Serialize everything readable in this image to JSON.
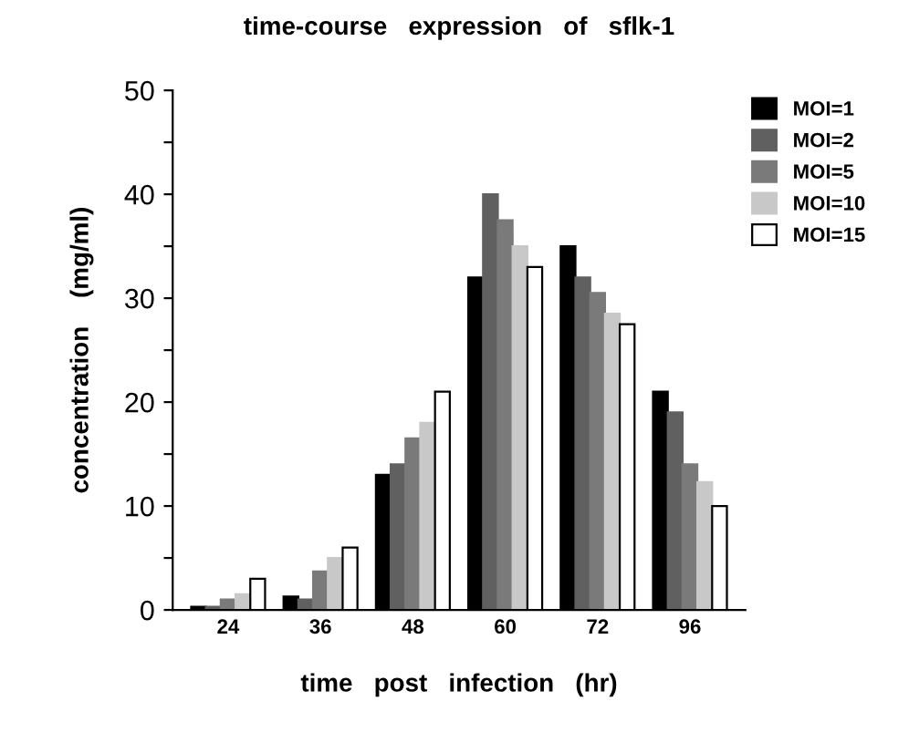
{
  "chart_data": {
    "type": "bar",
    "title": "time-course   expression   of   sflk-1",
    "xlabel": "time   post   infection   (hr)",
    "ylabel": "concentration    (mg/ml)",
    "categories": [
      "24",
      "36",
      "48",
      "60",
      "72",
      "96"
    ],
    "series": [
      {
        "name": "MOI=1",
        "color": "#000000",
        "values": [
          0.3,
          1.3,
          13,
          32,
          35,
          21
        ]
      },
      {
        "name": "MOI=2",
        "color": "#606060",
        "values": [
          0.3,
          1,
          14,
          40,
          32,
          19
        ]
      },
      {
        "name": "MOI=5",
        "color": "#7a7a7a",
        "values": [
          1,
          3.7,
          16.5,
          37.5,
          30.5,
          14
        ]
      },
      {
        "name": "MOI=10",
        "color": "#c8c8c8",
        "values": [
          1.5,
          5,
          18,
          35,
          28.5,
          12.3
        ]
      },
      {
        "name": "MOI=15",
        "color": "#ffffff",
        "values": [
          3,
          6,
          21,
          33,
          27.5,
          10
        ]
      }
    ],
    "ylim": [
      0,
      50
    ],
    "yticks": [
      0,
      {
        "value": 5,
        "label": null
      },
      10,
      {
        "value": 15,
        "label": null
      },
      20,
      {
        "value": 25,
        "label": null
      },
      30,
      {
        "value": 35,
        "label": null
      },
      40,
      {
        "value": 45,
        "label": null
      },
      50
    ],
    "grid": false,
    "legend": "top right"
  }
}
